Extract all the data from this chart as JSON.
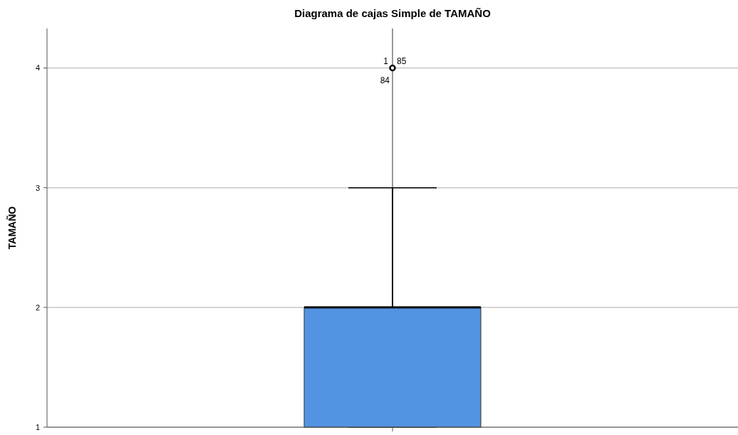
{
  "chart_data": {
    "type": "box",
    "title": "Diagrama de cajas Simple de TAMAÑO",
    "ylabel": "TAMAÑO",
    "categories": [
      null
    ],
    "boxes": [
      {
        "low": 1,
        "q1": 1,
        "median": 2,
        "q3": 2,
        "high": 3,
        "outliers": [
          4
        ]
      }
    ],
    "color": "#5294e2",
    "ylim": [
      1,
      4.33
    ],
    "yticks": [
      1,
      2,
      3,
      4
    ],
    "grid": true,
    "annotations": [
      "1",
      "85",
      "84"
    ]
  }
}
